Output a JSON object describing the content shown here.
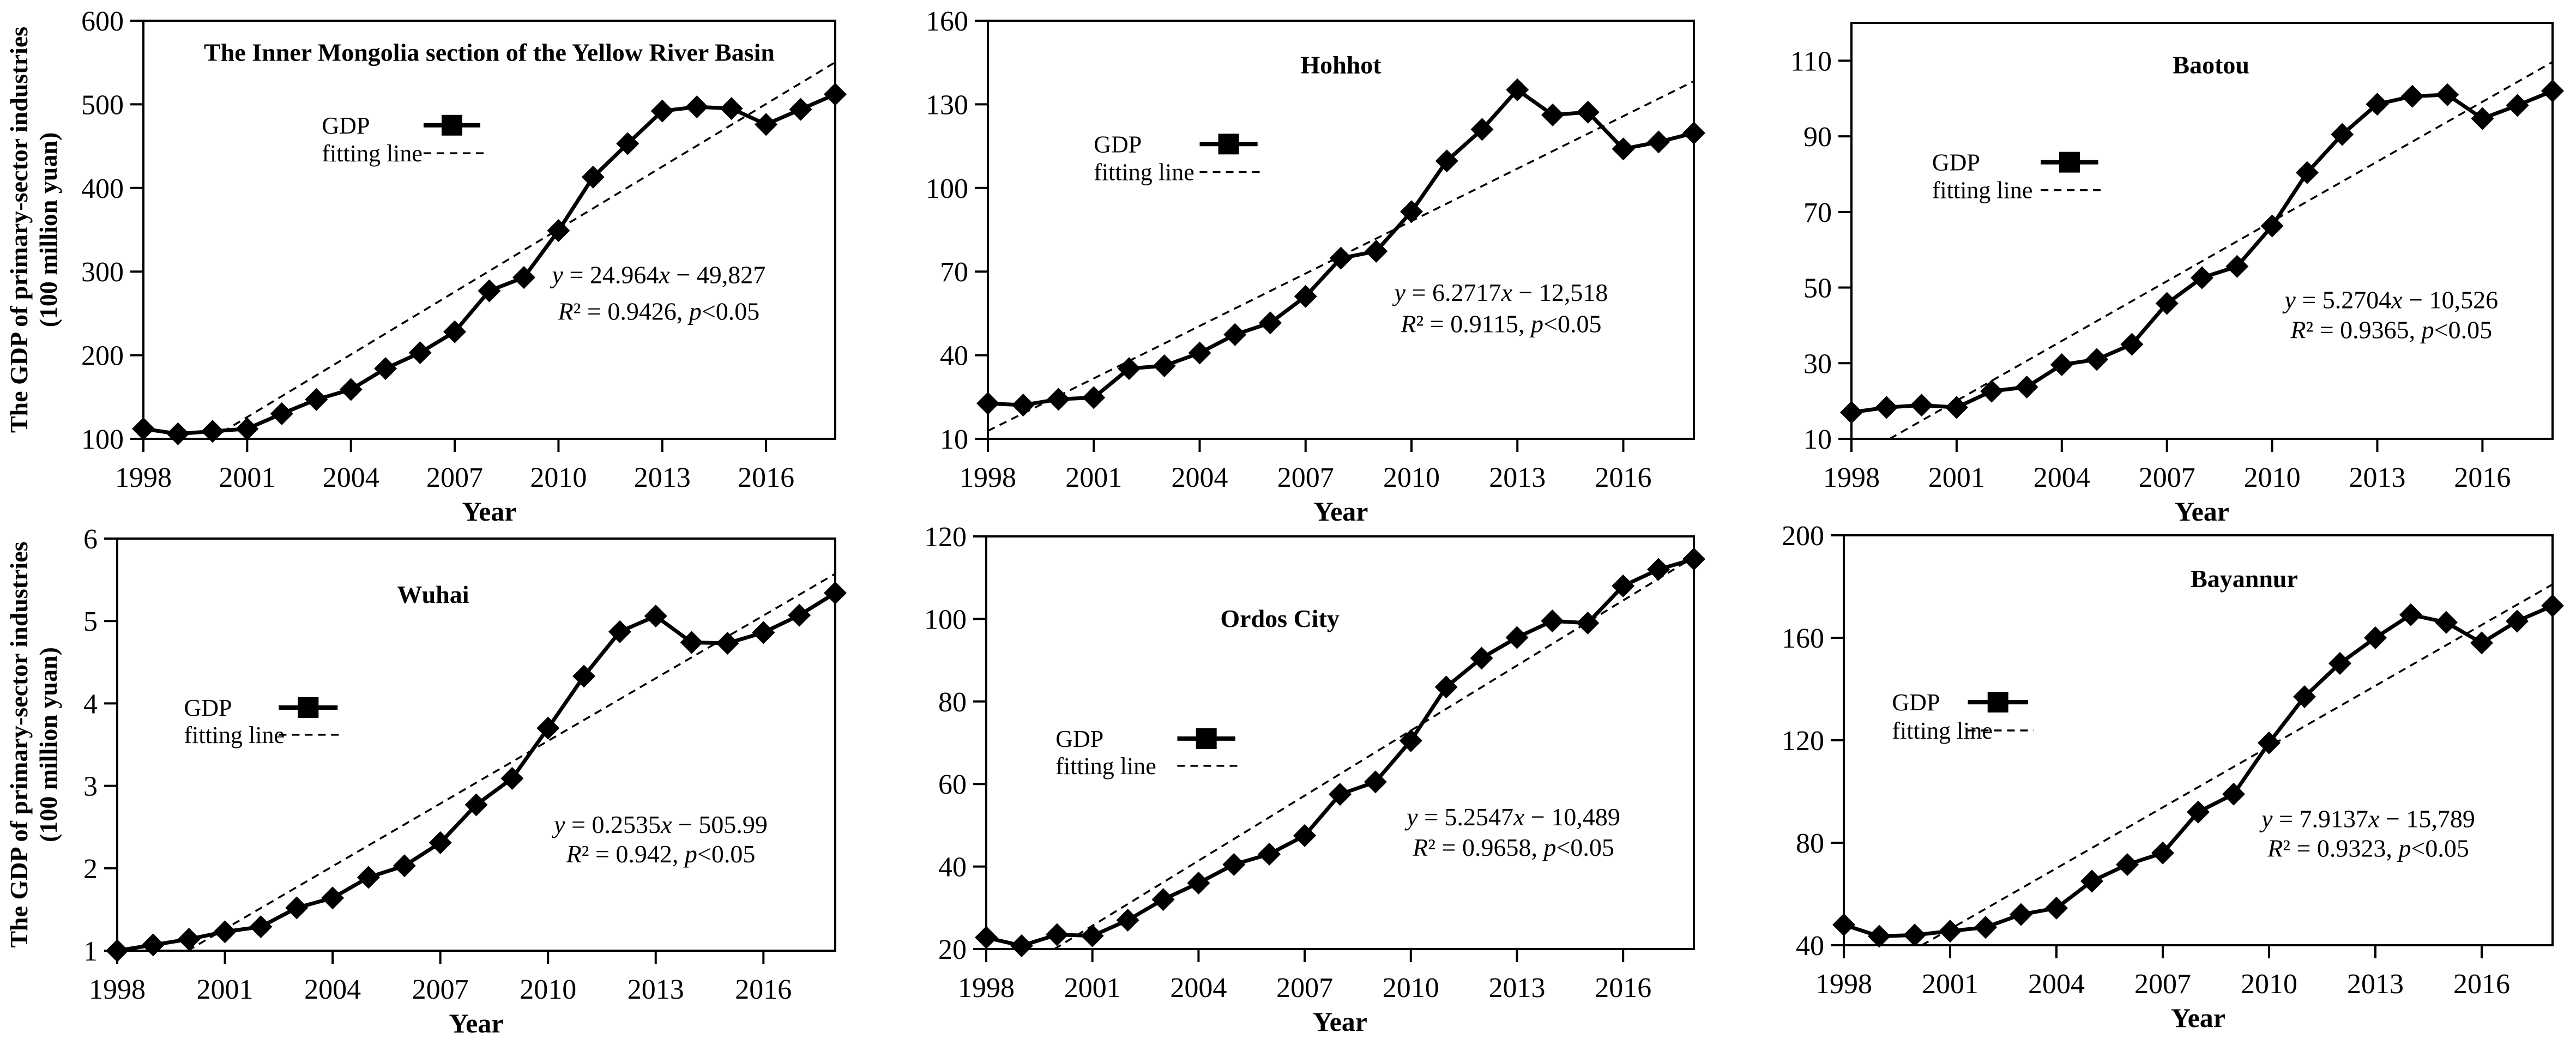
{
  "figure": {
    "xlabel": "Year",
    "ylabel_line1": "The  GDP of primary-sector industries",
    "ylabel_line2": "(100 million yuan)",
    "legend": {
      "gdp": "GDP",
      "fit": "fitting line"
    },
    "line_color": "#000000",
    "background": "#ffffff"
  },
  "chart_data": [
    {
      "type": "line",
      "title": "The Inner Mongolia section of the Yellow River Basin",
      "xlabel": "Year",
      "ylabel": "The GDP of primary-sector industries (100 million yuan)",
      "x": [
        1998,
        1999,
        2000,
        2001,
        2002,
        2003,
        2004,
        2005,
        2006,
        2007,
        2008,
        2009,
        2010,
        2011,
        2012,
        2013,
        2014,
        2015,
        2016,
        2017,
        2018
      ],
      "series": [
        {
          "name": "GDP",
          "marker": "diamond",
          "values": [
            112,
            106,
            109,
            112,
            130,
            147,
            159,
            184,
            203,
            228,
            277,
            293,
            349,
            413,
            453,
            492,
            497,
            495,
            476,
            494,
            512
          ]
        },
        {
          "name": "fitting line",
          "style": "dashed",
          "slope": 24.964,
          "intercept": -49827
        }
      ],
      "equation": "y = 24.964x − 49,827",
      "r2_text": "R² = 0.9426, p<0.05",
      "ylim": [
        100,
        600
      ],
      "yticks": [
        100,
        200,
        300,
        400,
        500,
        600
      ],
      "xticks": [
        1998,
        2001,
        2004,
        2007,
        2010,
        2013,
        2016
      ],
      "xlim": [
        1998,
        2018
      ],
      "grid": false,
      "legend_position": "upper-left"
    },
    {
      "type": "line",
      "title": "Hohhot",
      "xlabel": "Year",
      "ylabel": "The GDP of primary-sector industries (100 million yuan)",
      "x": [
        1998,
        1999,
        2000,
        2001,
        2002,
        2003,
        2004,
        2005,
        2006,
        2007,
        2008,
        2009,
        2010,
        2011,
        2012,
        2013,
        2014,
        2015,
        2016,
        2017,
        2018
      ],
      "series": [
        {
          "name": "GDP",
          "marker": "diamond",
          "values": [
            22.7,
            22.1,
            24.2,
            24.8,
            35.2,
            36.2,
            40.8,
            47.4,
            51.6,
            61.1,
            74.8,
            77.3,
            91.5,
            109.7,
            121,
            135.2,
            126.2,
            127.2,
            114,
            116.5,
            119.7
          ]
        },
        {
          "name": "fitting line",
          "style": "dashed",
          "slope": 6.2717,
          "intercept": -12518
        }
      ],
      "equation": "y = 6.2717x − 12,518",
      "r2_text": "R² = 0.9115, p<0.05",
      "ylim": [
        10,
        160
      ],
      "yticks": [
        10,
        40,
        70,
        100,
        130,
        160
      ],
      "xticks": [
        1998,
        2001,
        2004,
        2007,
        2010,
        2013,
        2016
      ],
      "xlim": [
        1998,
        2018
      ],
      "grid": false,
      "legend_position": "upper-left"
    },
    {
      "type": "line",
      "title": "Baotou",
      "xlabel": "Year",
      "ylabel": "The GDP of primary-sector industries (100 million yuan)",
      "x": [
        1998,
        1999,
        2000,
        2001,
        2002,
        2003,
        2004,
        2005,
        2006,
        2007,
        2008,
        2009,
        2010,
        2011,
        2012,
        2013,
        2014,
        2015,
        2016,
        2017,
        2018
      ],
      "series": [
        {
          "name": "GDP",
          "marker": "diamond",
          "values": [
            17,
            18.3,
            18.9,
            18.3,
            22.6,
            23.7,
            29.6,
            31,
            35,
            45.8,
            52.6,
            55.6,
            66.3,
            80.4,
            90.5,
            98.5,
            100.6,
            101,
            94.7,
            98.2,
            102
          ]
        },
        {
          "name": "fitting line",
          "style": "dashed",
          "slope": 5.2704,
          "intercept": -10526
        }
      ],
      "equation": "y = 5.2704x − 10,526",
      "r2_text": "R² = 0.9365, p<0.05",
      "ylim": [
        10,
        120
      ],
      "yticks": [
        10,
        30,
        50,
        70,
        90,
        110
      ],
      "xticks": [
        1998,
        2001,
        2004,
        2007,
        2010,
        2013,
        2016
      ],
      "xlim": [
        1998,
        2018
      ],
      "grid": false,
      "legend_position": "upper-left"
    },
    {
      "type": "line",
      "title": "Wuhai",
      "xlabel": "Year",
      "ylabel": "The GDP of primary-sector industries (100 million yuan)",
      "x": [
        1998,
        1999,
        2000,
        2001,
        2002,
        2003,
        2004,
        2005,
        2006,
        2007,
        2008,
        2009,
        2010,
        2011,
        2012,
        2013,
        2014,
        2015,
        2016,
        2017,
        2018
      ],
      "series": [
        {
          "name": "GDP",
          "marker": "diamond",
          "values": [
            1.0,
            1.07,
            1.14,
            1.23,
            1.29,
            1.52,
            1.64,
            1.89,
            2.03,
            2.31,
            2.77,
            3.09,
            3.7,
            4.33,
            4.87,
            5.06,
            4.74,
            4.73,
            4.86,
            5.07,
            5.34
          ]
        },
        {
          "name": "fitting line",
          "style": "dashed",
          "slope": 0.2535,
          "intercept": -505.99
        }
      ],
      "equation": "y = 0.2535x − 505.99",
      "r2_text": "R² = 0.942, p<0.05",
      "ylim": [
        1,
        6
      ],
      "yticks": [
        1,
        2,
        3,
        4,
        5,
        6
      ],
      "xticks": [
        1998,
        2001,
        2004,
        2007,
        2010,
        2013,
        2016
      ],
      "xlim": [
        1998,
        2018
      ],
      "grid": false,
      "legend_position": "upper-left"
    },
    {
      "type": "line",
      "title": "Ordos City",
      "xlabel": "Year",
      "ylabel": "The GDP of primary-sector industries (100 million yuan)",
      "x": [
        1998,
        1999,
        2000,
        2001,
        2002,
        2003,
        2004,
        2005,
        2006,
        2007,
        2008,
        2009,
        2010,
        2011,
        2012,
        2013,
        2014,
        2015,
        2016,
        2017,
        2018
      ],
      "series": [
        {
          "name": "GDP",
          "marker": "diamond",
          "values": [
            22.8,
            20.8,
            23.5,
            23.2,
            27,
            32,
            36,
            40.5,
            43,
            47.5,
            57.5,
            60.5,
            70.5,
            83.5,
            90.5,
            95.5,
            99.5,
            99,
            108,
            112,
            114.5
          ]
        },
        {
          "name": "fitting line",
          "style": "dashed",
          "slope": 5.2547,
          "intercept": -10489
        }
      ],
      "equation": "y = 5.2547x − 10,489",
      "r2_text": "R² = 0.9658, p<0.05",
      "ylim": [
        20,
        120
      ],
      "yticks": [
        20,
        40,
        60,
        80,
        100,
        120
      ],
      "xticks": [
        1998,
        2001,
        2004,
        2007,
        2010,
        2013,
        2016
      ],
      "xlim": [
        1998,
        2018
      ],
      "grid": false,
      "legend_position": "middle-left"
    },
    {
      "type": "line",
      "title": "Bayannur",
      "xlabel": "Year",
      "ylabel": "The GDP of primary-sector industries (100 million yuan)",
      "x": [
        1998,
        1999,
        2000,
        2001,
        2002,
        2003,
        2004,
        2005,
        2006,
        2007,
        2008,
        2009,
        2010,
        2011,
        2012,
        2013,
        2014,
        2015,
        2016,
        2017,
        2018
      ],
      "series": [
        {
          "name": "GDP",
          "marker": "diamond",
          "values": [
            48,
            43.5,
            44,
            45.5,
            47,
            52,
            54.5,
            65,
            71.5,
            76,
            92,
            99,
            119,
            137,
            150,
            160,
            169,
            166,
            158,
            166.5,
            172.5
          ]
        },
        {
          "name": "fitting line",
          "style": "dashed",
          "slope": 7.9137,
          "intercept": -15789
        }
      ],
      "equation": "y = 7.9137x − 15,789",
      "r2_text": "R² = 0.9323, p<0.05",
      "ylim": [
        40,
        200
      ],
      "yticks": [
        40,
        80,
        120,
        160,
        200
      ],
      "xticks": [
        1998,
        2001,
        2004,
        2007,
        2010,
        2013,
        2016
      ],
      "xlim": [
        1998,
        2018
      ],
      "grid": false,
      "legend_position": "middle-left"
    }
  ]
}
